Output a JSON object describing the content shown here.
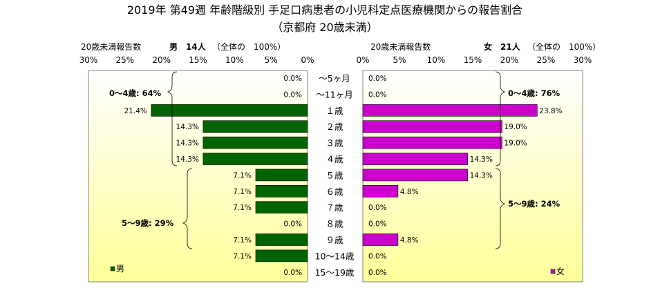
{
  "chart_data": {
    "type": "bar",
    "title": "2019年 第49週 年齢階級別 手足口病患者の小児科定点医療機関からの報告割合",
    "subtitle": "（京都府 20歳未満）",
    "categories": [
      "～5ヶ月",
      "～11ヶ月",
      "１歳",
      "２歳",
      "３歳",
      "４歳",
      "５歳",
      "６歳",
      "７歳",
      "８歳",
      "９歳",
      "10～14歳",
      "15～19歳"
    ],
    "xlim": [
      0,
      30
    ],
    "tick_labels": [
      "0%",
      "5%",
      "10%",
      "15%",
      "20%",
      "25%",
      "30%"
    ],
    "series": [
      {
        "name": "男",
        "side": "left",
        "color": "#006400",
        "header_prefix": "20歳未満報告数",
        "header_count": "男　14人",
        "header_suffix": "（全体の　100%）",
        "values": [
          0.0,
          0.0,
          21.4,
          14.3,
          14.3,
          14.3,
          7.1,
          7.1,
          7.1,
          0.0,
          7.1,
          7.1,
          0.0
        ],
        "value_labels": [
          "0.0%",
          "0.0%",
          "21.4%",
          "14.3%",
          "14.3%",
          "14.3%",
          "7.1%",
          "7.1%",
          "7.1%",
          "0.0%",
          "7.1%",
          "7.1%",
          "0.0%"
        ],
        "group_labels": [
          "0～4歳: 64%",
          "5～9歳: 29%"
        ]
      },
      {
        "name": "女",
        "side": "right",
        "color": "#cc00cc",
        "header_prefix": "20歳未満報告数",
        "header_count": "女　21人",
        "header_suffix": "（全体の　100%）",
        "values": [
          0.0,
          0.0,
          23.8,
          19.0,
          19.0,
          14.3,
          14.3,
          4.8,
          0.0,
          0.0,
          4.8,
          0.0,
          0.0
        ],
        "value_labels": [
          "0.0%",
          "0.0%",
          "23.8%",
          "19.0%",
          "19.0%",
          "14.3%",
          "14.3%",
          "4.8%",
          "0.0%",
          "0.0%",
          "4.8%",
          "0.0%",
          "0.0%"
        ],
        "group_labels": [
          "0～4歳: 76%",
          "5～9歳: 24%"
        ]
      }
    ],
    "colors": {
      "background_top": "#ffffff",
      "background_bottom": "#ffff99",
      "plot_border": "#808080"
    },
    "legend": "bottom-left / bottom-right",
    "grid": false
  }
}
